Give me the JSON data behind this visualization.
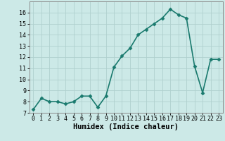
{
  "x": [
    0,
    1,
    2,
    3,
    4,
    5,
    6,
    7,
    8,
    9,
    10,
    11,
    12,
    13,
    14,
    15,
    16,
    17,
    18,
    19,
    20,
    21,
    22,
    23
  ],
  "y": [
    7.3,
    8.3,
    8.0,
    8.0,
    7.8,
    8.0,
    8.5,
    8.5,
    7.5,
    8.5,
    11.1,
    12.1,
    12.8,
    14.0,
    14.5,
    15.0,
    15.5,
    16.3,
    15.8,
    15.5,
    11.2,
    8.8,
    11.8,
    11.8
  ],
  "line_color": "#1a7a6e",
  "marker": "D",
  "marker_size": 2.5,
  "bg_color": "#cce9e7",
  "grid_color": "#b0d0ce",
  "xlabel": "Humidex (Indice chaleur)",
  "xlim": [
    -0.5,
    23.5
  ],
  "ylim": [
    7,
    17
  ],
  "yticks": [
    7,
    8,
    9,
    10,
    11,
    12,
    13,
    14,
    15,
    16
  ],
  "xticks": [
    0,
    1,
    2,
    3,
    4,
    5,
    6,
    7,
    8,
    9,
    10,
    11,
    12,
    13,
    14,
    15,
    16,
    17,
    18,
    19,
    20,
    21,
    22,
    23
  ],
  "tick_fontsize": 6,
  "xlabel_fontsize": 7.5,
  "linewidth": 1.2
}
